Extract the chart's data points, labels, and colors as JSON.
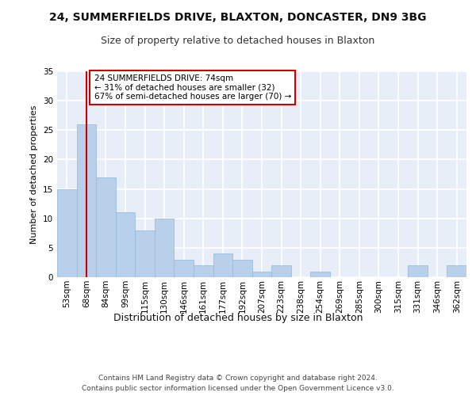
{
  "title1": "24, SUMMERFIELDS DRIVE, BLAXTON, DONCASTER, DN9 3BG",
  "title2": "Size of property relative to detached houses in Blaxton",
  "xlabel": "Distribution of detached houses by size in Blaxton",
  "ylabel": "Number of detached properties",
  "categories": [
    "53sqm",
    "68sqm",
    "84sqm",
    "99sqm",
    "115sqm",
    "130sqm",
    "146sqm",
    "161sqm",
    "177sqm",
    "192sqm",
    "207sqm",
    "223sqm",
    "238sqm",
    "254sqm",
    "269sqm",
    "285sqm",
    "300sqm",
    "315sqm",
    "331sqm",
    "346sqm",
    "362sqm"
  ],
  "values": [
    15,
    26,
    17,
    11,
    8,
    10,
    3,
    2,
    4,
    3,
    1,
    2,
    0,
    1,
    0,
    0,
    0,
    0,
    2,
    0,
    2
  ],
  "bar_color": "#b8d0ea",
  "bar_edge_color": "#8fb8d8",
  "vline_x": 1,
  "vline_color": "#cc0000",
  "annotation_text": "24 SUMMERFIELDS DRIVE: 74sqm\n← 31% of detached houses are smaller (32)\n67% of semi-detached houses are larger (70) →",
  "annotation_box_color": "#ffffff",
  "annotation_box_edge_color": "#cc0000",
  "footer": "Contains HM Land Registry data © Crown copyright and database right 2024.\nContains public sector information licensed under the Open Government Licence v3.0.",
  "ylim": [
    0,
    35
  ],
  "background_color": "#e8eef8",
  "grid_color": "#ffffff",
  "title1_fontsize": 10,
  "title2_fontsize": 9,
  "xlabel_fontsize": 9,
  "ylabel_fontsize": 8,
  "tick_fontsize": 7.5,
  "footer_fontsize": 6.5,
  "annotation_fontsize": 7.5
}
